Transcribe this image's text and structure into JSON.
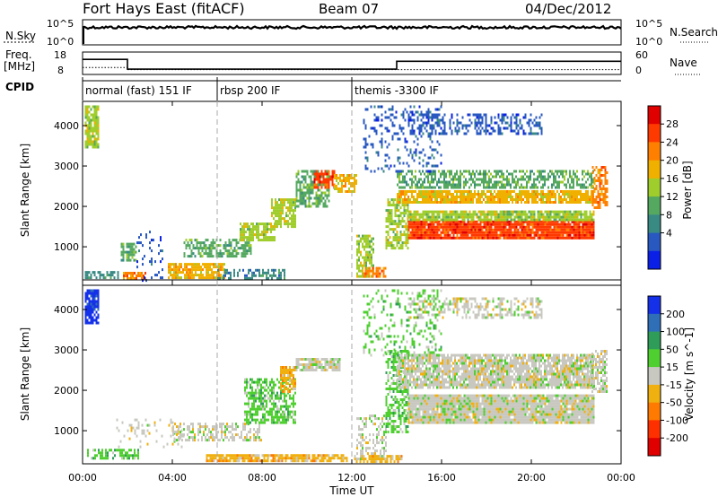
{
  "header": {
    "title": "Fort Hays East (fitACF)",
    "beam": "Beam 07",
    "date": "04/Dec/2012"
  },
  "noise_panel": {
    "left_label": "N.Sky",
    "left_ticks": [
      "10^5",
      "10^0"
    ],
    "right_label": "N.Search",
    "right_ticks": [
      "10^5",
      "10^0"
    ]
  },
  "freq_panel": {
    "label": "Freq.",
    "unit": "[MHz]",
    "left_ticks": [
      "18",
      "8"
    ],
    "right_label": "Nave",
    "right_ticks": [
      "60",
      "0"
    ],
    "freq_steps": [
      {
        "x0": 0,
        "x1": 2.0,
        "v": 16.3
      },
      {
        "x0": 2.0,
        "x1": 14.0,
        "v": 10.6
      },
      {
        "x0": 14.0,
        "x1": 24,
        "v": 15.2
      }
    ],
    "nave_steps": [
      {
        "x0": 0,
        "x1": 2.0,
        "v": 21
      },
      {
        "x0": 2.0,
        "x1": 24,
        "v": 14
      }
    ]
  },
  "cpid": {
    "label": "CPID",
    "segments": [
      {
        "label": "normal (fast) 151 IF",
        "start": 0
      },
      {
        "label": "rbsp 200 IF",
        "start": 6.0
      },
      {
        "label": "themis -3300 IF",
        "start": 12.0
      }
    ]
  },
  "x_axis": {
    "title": "Time UT",
    "ticks": [
      "00:00",
      "04:00",
      "08:00",
      "12:00",
      "16:00",
      "20:00",
      "00:00"
    ]
  },
  "power_panel": {
    "ylabel": "Slant Range [km]",
    "colorbar_label": "Power [dB]",
    "colorbar_ticks": [
      "4",
      "8",
      "12",
      "16",
      "20",
      "24",
      "28"
    ],
    "colors": [
      "#0b20e6",
      "#2858c0",
      "#3a8a84",
      "#55a860",
      "#9fcd2b",
      "#f0b000",
      "#ff8000",
      "#ff3a00",
      "#e00000"
    ]
  },
  "velocity_panel": {
    "ylabel": "Slant Range [km]",
    "colorbar_label": "Velocity [m s^-1]",
    "colorbar_ticks": [
      "200",
      "100",
      "50",
      "15",
      "-15",
      "-50",
      "-100",
      "-200"
    ],
    "colors": [
      "#1430e8",
      "#2f6fb8",
      "#2f9c59",
      "#4fcf30",
      "#c8c8c0",
      "#f0b010",
      "#ff7a00",
      "#ff3000",
      "#e00000"
    ]
  },
  "chart_data": {
    "type": "heatmap",
    "x_range_hours": [
      0,
      24
    ],
    "ylim_km": [
      180,
      4600
    ],
    "yticks": [
      1000,
      2000,
      3000,
      4000
    ],
    "guide_lines_hours": [
      6.0,
      12.0
    ],
    "grid": false,
    "power_regions": [
      {
        "t0": 0.1,
        "t1": 0.7,
        "r0": 3500,
        "r1": 4500,
        "density": 0.8,
        "c": 4
      },
      {
        "t0": 0.1,
        "t1": 1.6,
        "r0": 250,
        "r1": 400,
        "density": 0.7,
        "c": 2
      },
      {
        "t0": 1.7,
        "t1": 2.4,
        "r0": 700,
        "r1": 1100,
        "density": 0.7,
        "c": 3
      },
      {
        "t0": 1.8,
        "t1": 2.8,
        "r0": 230,
        "r1": 380,
        "density": 0.8,
        "c": 6
      },
      {
        "t0": 2.4,
        "t1": 3.6,
        "r0": 200,
        "r1": 1400,
        "density": 0.12,
        "c": 1
      },
      {
        "t0": 3.8,
        "t1": 6.3,
        "r0": 250,
        "r1": 600,
        "density": 0.8,
        "c": 5
      },
      {
        "t0": 4.5,
        "t1": 7.5,
        "r0": 800,
        "r1": 1200,
        "density": 0.6,
        "c": 3
      },
      {
        "t0": 6.0,
        "t1": 9.0,
        "r0": 200,
        "r1": 450,
        "density": 0.5,
        "c": 2
      },
      {
        "t0": 7.0,
        "t1": 8.6,
        "r0": 1200,
        "r1": 1600,
        "density": 0.8,
        "c": 4
      },
      {
        "t0": 8.4,
        "t1": 9.5,
        "r0": 1500,
        "r1": 2200,
        "density": 0.8,
        "c": 4
      },
      {
        "t0": 9.5,
        "t1": 11.0,
        "r0": 2000,
        "r1": 2900,
        "density": 0.6,
        "c": 3
      },
      {
        "t0": 10.3,
        "t1": 11.2,
        "r0": 2500,
        "r1": 2900,
        "density": 0.8,
        "c": 7
      },
      {
        "t0": 11.2,
        "t1": 12.2,
        "r0": 2400,
        "r1": 2800,
        "density": 0.7,
        "c": 5
      },
      {
        "t0": 12.2,
        "t1": 13.0,
        "r0": 300,
        "r1": 1300,
        "density": 0.6,
        "c": 4
      },
      {
        "t0": 12.5,
        "t1": 13.5,
        "r0": 250,
        "r1": 500,
        "density": 0.7,
        "c": 6
      },
      {
        "t0": 13.5,
        "t1": 14.5,
        "r0": 1000,
        "r1": 2200,
        "density": 0.6,
        "c": 4
      },
      {
        "t0": 14.5,
        "t1": 22.8,
        "r0": 1200,
        "r1": 1650,
        "density": 0.95,
        "c": 7
      },
      {
        "t0": 14.5,
        "t1": 22.8,
        "r0": 1650,
        "r1": 1900,
        "density": 0.85,
        "c": 4
      },
      {
        "t0": 14.0,
        "t1": 22.8,
        "r0": 2100,
        "r1": 2400,
        "density": 0.85,
        "c": 5
      },
      {
        "t0": 14.0,
        "t1": 22.8,
        "r0": 2500,
        "r1": 2900,
        "density": 0.6,
        "c": 3
      },
      {
        "t0": 14.5,
        "t1": 20.5,
        "r0": 3800,
        "r1": 4300,
        "density": 0.4,
        "c": 1
      },
      {
        "t0": 12.5,
        "t1": 16.0,
        "r0": 2900,
        "r1": 4500,
        "density": 0.2,
        "c": 1
      },
      {
        "t0": 22.7,
        "t1": 23.4,
        "r0": 2000,
        "r1": 3000,
        "density": 0.6,
        "c": 6
      }
    ],
    "velocity_regions": [
      {
        "t0": 0.1,
        "t1": 0.7,
        "r0": 3700,
        "r1": 4500,
        "density": 0.9,
        "c": 0
      },
      {
        "t0": 0.2,
        "t1": 2.5,
        "r0": 300,
        "r1": 550,
        "density": 0.6,
        "c": 3
      },
      {
        "t0": 1.5,
        "t1": 4.5,
        "r0": 600,
        "r1": 1300,
        "density": 0.15,
        "c": 4
      },
      {
        "t0": 4.0,
        "t1": 8.0,
        "r0": 800,
        "r1": 1200,
        "density": 0.5,
        "c": 4
      },
      {
        "t0": 5.5,
        "t1": 11.8,
        "r0": 250,
        "r1": 420,
        "density": 0.85,
        "c": 5
      },
      {
        "t0": 7.2,
        "t1": 9.5,
        "r0": 1200,
        "r1": 2300,
        "density": 0.6,
        "c": 3
      },
      {
        "t0": 8.8,
        "t1": 9.5,
        "r0": 2000,
        "r1": 2600,
        "density": 0.7,
        "c": 5
      },
      {
        "t0": 9.5,
        "t1": 11.5,
        "r0": 2500,
        "r1": 2800,
        "density": 0.8,
        "c": 4
      },
      {
        "t0": 12.2,
        "t1": 13.5,
        "r0": 300,
        "r1": 1400,
        "density": 0.4,
        "c": 4
      },
      {
        "t0": 12.1,
        "t1": 14.2,
        "r0": 250,
        "r1": 400,
        "density": 0.6,
        "c": 5
      },
      {
        "t0": 13.5,
        "t1": 14.5,
        "r0": 1000,
        "r1": 3000,
        "density": 0.5,
        "c": 3
      },
      {
        "t0": 14.5,
        "t1": 22.8,
        "r0": 1200,
        "r1": 1900,
        "density": 0.95,
        "c": 4
      },
      {
        "t0": 14.0,
        "t1": 22.8,
        "r0": 2100,
        "r1": 2900,
        "density": 0.85,
        "c": 4
      },
      {
        "t0": 14.5,
        "t1": 20.5,
        "r0": 3800,
        "r1": 4300,
        "density": 0.45,
        "c": 4
      },
      {
        "t0": 12.5,
        "t1": 16.0,
        "r0": 2900,
        "r1": 4500,
        "density": 0.2,
        "c": 3
      },
      {
        "t0": 22.6,
        "t1": 23.4,
        "r0": 2000,
        "r1": 3000,
        "density": 0.7,
        "c": 4
      }
    ]
  }
}
